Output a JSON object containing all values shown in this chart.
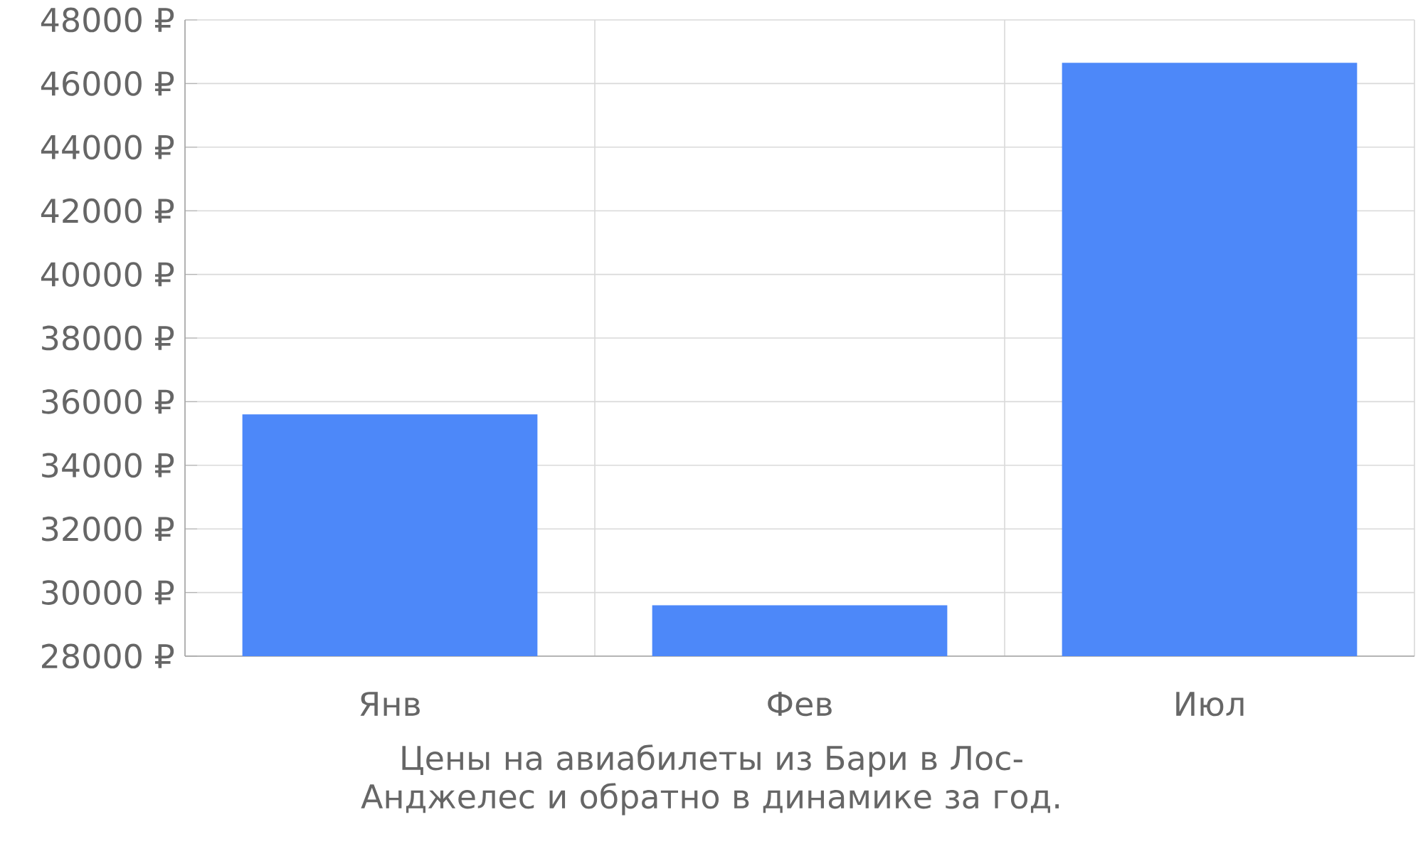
{
  "chart_data": {
    "type": "bar",
    "categories": [
      "Янв",
      "Фев",
      "Июл"
    ],
    "values": [
      35600,
      29600,
      46650
    ],
    "color": "#4d88f9",
    "ylim": [
      28000,
      48000
    ],
    "yticks": [
      {
        "value": 28000,
        "label": "28000 ₽"
      },
      {
        "value": 30000,
        "label": "30000 ₽"
      },
      {
        "value": 32000,
        "label": "32000 ₽"
      },
      {
        "value": 34000,
        "label": "34000 ₽"
      },
      {
        "value": 36000,
        "label": "36000 ₽"
      },
      {
        "value": 38000,
        "label": "38000 ₽"
      },
      {
        "value": 40000,
        "label": "40000 ₽"
      },
      {
        "value": 42000,
        "label": "42000 ₽"
      },
      {
        "value": 44000,
        "label": "44000 ₽"
      },
      {
        "value": 46000,
        "label": "46000 ₽"
      },
      {
        "value": 48000,
        "label": "48000 ₽"
      }
    ],
    "grid": true,
    "annotations": [
      "Цены на авиабилеты из Бари в Лос-Анджелес и обратно в динамике за год."
    ]
  }
}
